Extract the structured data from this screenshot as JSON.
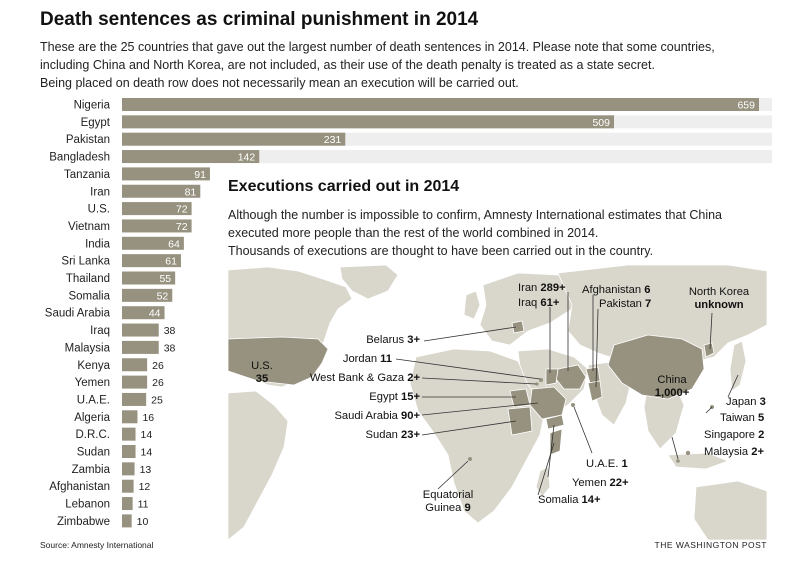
{
  "header": {
    "title": "Death sentences as criminal punishment in 2014",
    "intro_lines": [
      "These are the 25 countries that gave out the largest number of death sentences in 2014. Please note that some countries,",
      "including China and North Korea, are not included, as their use of the death penalty is treated as a state secret.",
      "Being placed on death row does not necessarily mean an execution will be carried out."
    ]
  },
  "chart_data": {
    "type": "bar",
    "orientation": "horizontal",
    "categories": [
      "Nigeria",
      "Egypt",
      "Pakistan",
      "Bangladesh",
      "Tanzania",
      "Iran",
      "U.S.",
      "Vietnam",
      "India",
      "Sri Lanka",
      "Thailand",
      "Somalia",
      "Saudi Arabia",
      "Iraq",
      "Malaysia",
      "Kenya",
      "Yemen",
      "U.A.E.",
      "Algeria",
      "D.R.C.",
      "Sudan",
      "Zambia",
      "Afghanistan",
      "Lebanon",
      "Zimbabwe"
    ],
    "values": [
      659,
      509,
      231,
      142,
      91,
      81,
      72,
      72,
      64,
      61,
      55,
      52,
      44,
      38,
      38,
      26,
      26,
      25,
      16,
      14,
      14,
      13,
      12,
      11,
      10
    ],
    "value_labels": [
      "659",
      "509",
      "231",
      "142",
      "91",
      "81",
      "72",
      "72",
      "64",
      "61",
      "55",
      "52",
      "44",
      "38",
      "38",
      "26",
      "26",
      "25",
      "16",
      "14",
      "14",
      "13",
      "12",
      "11",
      "10"
    ],
    "xlim": [
      0,
      659
    ],
    "bar_color": "#96927f",
    "track_color": "#eeeeee",
    "grid": false
  },
  "executions": {
    "title": "Executions carried out in 2014",
    "intro_lines": [
      "Although the number is impossible to confirm, Amnesty International estimates that China",
      "executed more people than the rest of the world combined in 2014.",
      "Thousands of executions are thought to have been carried out in the country."
    ],
    "labels": {
      "iran": {
        "name": "Iran",
        "value": "289+"
      },
      "iraq": {
        "name": "Iraq",
        "value": "61+"
      },
      "afghanistan": {
        "name": "Afghanistan",
        "value": "6"
      },
      "pakistan": {
        "name": "Pakistan",
        "value": "7"
      },
      "north_korea": {
        "name": "North Korea",
        "value": "unknown"
      },
      "belarus": {
        "name": "Belarus",
        "value": "3+"
      },
      "jordan": {
        "name": "Jordan",
        "value": "11"
      },
      "west_bank": {
        "name": "West Bank & Gaza",
        "value": "2+"
      },
      "egypt": {
        "name": "Egypt",
        "value": "15+"
      },
      "saudi": {
        "name": "Saudi Arabia",
        "value": "90+"
      },
      "sudan": {
        "name": "Sudan",
        "value": "23+"
      },
      "us": {
        "name": "U.S.",
        "value": "35"
      },
      "china": {
        "name": "China",
        "value": "1,000+"
      },
      "japan": {
        "name": "Japan",
        "value": "3"
      },
      "taiwan": {
        "name": "Taiwan",
        "value": "5"
      },
      "singapore": {
        "name": "Singapore",
        "value": "2"
      },
      "malaysia": {
        "name": "Malaysia",
        "value": "2+"
      },
      "uae": {
        "name": "U.A.E.",
        "value": "1"
      },
      "yemen": {
        "name": "Yemen",
        "value": "22+"
      },
      "somalia": {
        "name": "Somalia",
        "value": "14+"
      },
      "eq_guinea": {
        "name": "Equatorial",
        "name2": "Guinea",
        "value": "9"
      }
    },
    "colors": {
      "land": "#d9d6cc",
      "executing": "#96927f",
      "border": "#ffffff"
    }
  },
  "footer": {
    "source": "Source: Amnesty International",
    "credit": "THE WASHINGTON POST"
  }
}
